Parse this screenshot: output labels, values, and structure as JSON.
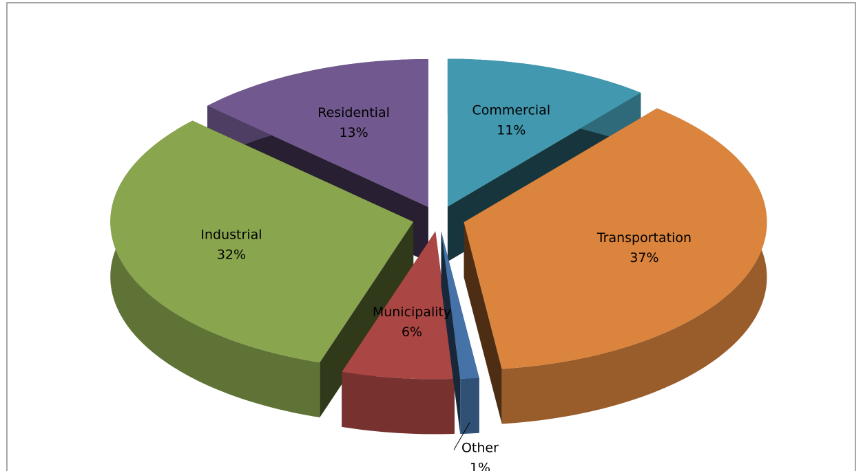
{
  "chart_data": {
    "type": "pie",
    "categories": [
      "Commercial",
      "Transportation",
      "Other",
      "Municipality",
      "Industrial",
      "Residential"
    ],
    "values": [
      11,
      37,
      1,
      6,
      32,
      13
    ],
    "value_labels": [
      "11%",
      "37%",
      "1%",
      "6%",
      "32%",
      "13%"
    ],
    "colors": [
      "#4198af",
      "#db843d",
      "#4572a7",
      "#aa4643",
      "#89a54e",
      "#71588f"
    ],
    "explode": true,
    "three_d": true
  }
}
